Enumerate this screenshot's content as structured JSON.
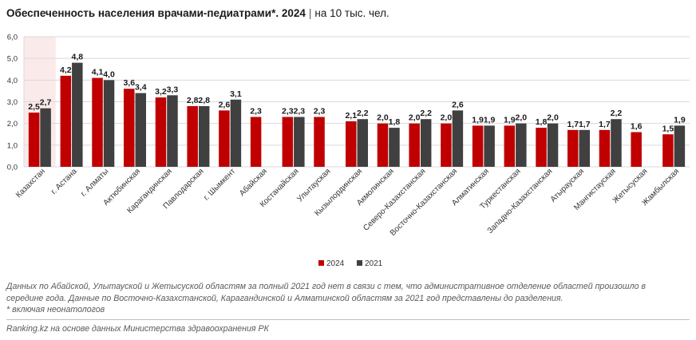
{
  "header": {
    "title_main": "Обеспеченность населения врачами-педиатрами*. 2024",
    "title_sep": "|",
    "title_unit": "на 10 тыс. чел."
  },
  "chart_data": {
    "type": "bar",
    "categories": [
      "Казахстан",
      "г. Астана",
      "г. Алматы",
      "Актюбинская",
      "Карагандинская",
      "Павлодарская",
      "г. Шымкент",
      "Абайская",
      "Костанайская",
      "Улытауская",
      "Кызылординская",
      "Акмолинская",
      "Северо-Казахстанская",
      "Восточно-Казахстанская",
      "Алматинская",
      "Туркестанская",
      "Западно-Казахстанская",
      "Атырауская",
      "Мангистауская",
      "Жетысуская",
      "Жамбылская"
    ],
    "series": [
      {
        "name": "2024",
        "color": "#c00000",
        "values": [
          2.5,
          4.2,
          4.1,
          3.6,
          3.2,
          2.8,
          2.6,
          2.3,
          2.3,
          2.3,
          2.1,
          2.0,
          2.0,
          2.0,
          1.9,
          1.9,
          1.8,
          1.7,
          1.7,
          1.6,
          1.5
        ]
      },
      {
        "name": "2021",
        "color": "#404040",
        "values": [
          2.7,
          4.8,
          4.0,
          3.4,
          3.3,
          2.8,
          3.1,
          null,
          2.3,
          null,
          2.2,
          1.8,
          2.2,
          2.6,
          1.9,
          2.0,
          2.0,
          1.7,
          2.2,
          null,
          1.9
        ]
      }
    ],
    "yticks": [
      "0,0",
      "1,0",
      "2,0",
      "3,0",
      "4,0",
      "5,0",
      "6,0"
    ],
    "ylim": [
      0,
      6
    ],
    "grid": true,
    "highlight_category": "Казахстан",
    "legend_position": "bottom-center"
  },
  "notes": {
    "line1": "Данных по Абайской, Улытауской и Жетысуской областям за полный 2021 год нет в связи с тем, что административное отделение областей произошло в",
    "line2": "середине года. Данные по Восточно-Казахстанской, Карагандинской и Алматинской областям за 2021 год представлены до разделения.",
    "line3": "* включая неонатологов"
  },
  "source": "Ranking.kz на основе данных Министерства здравоохранения РК"
}
